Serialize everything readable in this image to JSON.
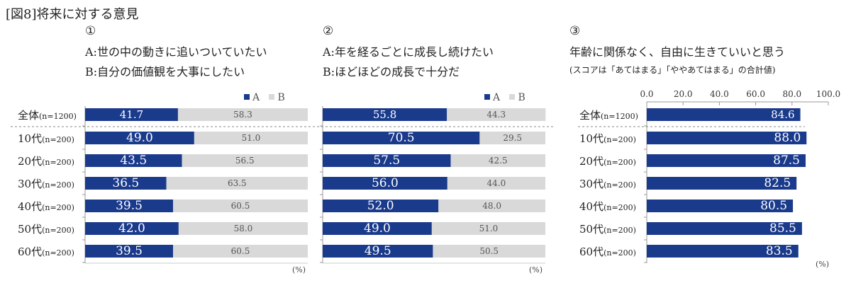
{
  "figure_title": "[図8]将来に対する意見",
  "unit_label": "(%)",
  "colors": {
    "a": "#1a3a8c",
    "b": "#d9d9d9",
    "single": "#1a3a8c",
    "axis": "#999999"
  },
  "row_labels": [
    {
      "main": "全体",
      "n": "(n=1200)"
    },
    {
      "main": "10代",
      "n": "(n=200)"
    },
    {
      "main": "20代",
      "n": "(n=200)"
    },
    {
      "main": "30代",
      "n": "(n=200)"
    },
    {
      "main": "40代",
      "n": "(n=200)"
    },
    {
      "main": "50代",
      "n": "(n=200)"
    },
    {
      "main": "60代",
      "n": "(n=200)"
    }
  ],
  "panels": [
    {
      "number": "①",
      "line_a": "A:世の中の動きに追いついていたい",
      "line_b": "B:自分の価値観を大事にしたい",
      "legend_a": "A",
      "legend_b": "B"
    },
    {
      "number": "②",
      "line_a": "A:年を経るごとに成長し続けたい",
      "line_b": "B:ほどほどの成長で十分だ",
      "legend_a": "A",
      "legend_b": "B"
    },
    {
      "number": "③",
      "title": "年齢に関係なく、自由に生きていいと思う",
      "note": "(スコアは「あてはまる」「ややあてはまる」の合計値)"
    }
  ],
  "chart_data": [
    {
      "type": "bar",
      "stacked": true,
      "orientation": "horizontal",
      "categories": [
        "全体(n=1200)",
        "10代(n=200)",
        "20代(n=200)",
        "30代(n=200)",
        "40代(n=200)",
        "50代(n=200)",
        "60代(n=200)"
      ],
      "series": [
        {
          "name": "A",
          "values": [
            41.7,
            49.0,
            43.5,
            36.5,
            39.5,
            42.0,
            39.5
          ],
          "labels": [
            "41.7",
            "49.0",
            "43.5",
            "36.5",
            "39.5",
            "42.0",
            "39.5"
          ]
        },
        {
          "name": "B",
          "values": [
            58.3,
            51.0,
            56.5,
            63.5,
            60.5,
            58.0,
            60.5
          ],
          "labels": [
            "58.3",
            "51.0",
            "56.5",
            "63.5",
            "60.5",
            "58.0",
            "60.5"
          ]
        }
      ],
      "xlim": [
        0,
        100
      ],
      "legend": "top-right"
    },
    {
      "type": "bar",
      "stacked": true,
      "orientation": "horizontal",
      "categories": [
        "全体(n=1200)",
        "10代(n=200)",
        "20代(n=200)",
        "30代(n=200)",
        "40代(n=200)",
        "50代(n=200)",
        "60代(n=200)"
      ],
      "series": [
        {
          "name": "A",
          "values": [
            55.8,
            70.5,
            57.5,
            56.0,
            52.0,
            49.0,
            49.5
          ],
          "labels": [
            "55.8",
            "70.5",
            "57.5",
            "56.0",
            "52.0",
            "49.0",
            "49.5"
          ]
        },
        {
          "name": "B",
          "values": [
            44.3,
            29.5,
            42.5,
            44.0,
            48.0,
            51.0,
            50.5
          ],
          "labels": [
            "44.3",
            "29.5",
            "42.5",
            "44.0",
            "48.0",
            "51.0",
            "50.5"
          ]
        }
      ],
      "xlim": [
        0,
        100
      ],
      "legend": "top-right"
    },
    {
      "type": "bar",
      "orientation": "horizontal",
      "categories": [
        "全体(n=1200)",
        "10代(n=200)",
        "20代(n=200)",
        "30代(n=200)",
        "40代(n=200)",
        "50代(n=200)",
        "60代(n=200)"
      ],
      "values": [
        84.6,
        88.0,
        87.5,
        82.5,
        80.5,
        85.5,
        83.5
      ],
      "labels": [
        "84.6",
        "88.0",
        "87.5",
        "82.5",
        "80.5",
        "85.5",
        "83.5"
      ],
      "xlim": [
        0,
        100
      ],
      "ticks": [
        "0.0",
        "20.0",
        "40.0",
        "60.0",
        "80.0",
        "100.0"
      ]
    }
  ]
}
